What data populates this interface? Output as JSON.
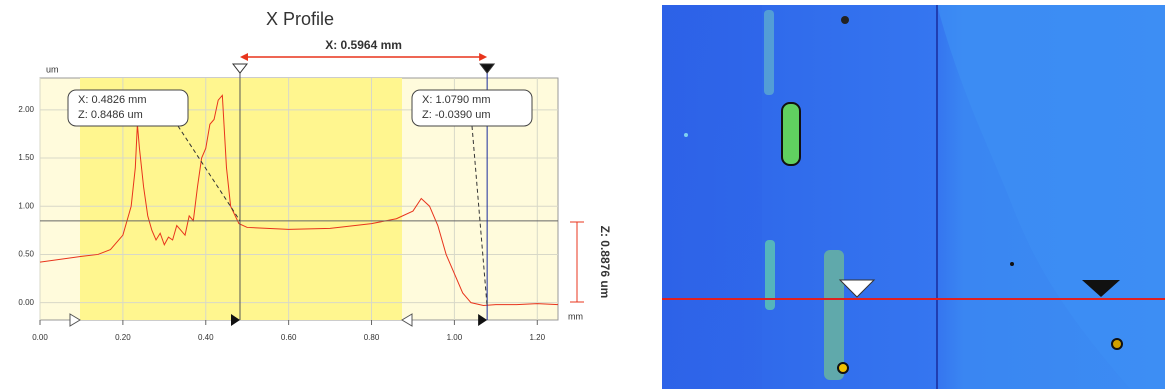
{
  "chart_data": {
    "type": "line",
    "title": "X Profile",
    "span_label": "X: 0.5964 mm",
    "height_label": "Z: 0.8876 um",
    "y_unit": "um",
    "x_unit": "mm",
    "x": [
      0.0,
      0.05,
      0.1,
      0.14,
      0.17,
      0.2,
      0.22,
      0.23,
      0.235,
      0.24,
      0.25,
      0.26,
      0.27,
      0.28,
      0.29,
      0.3,
      0.31,
      0.32,
      0.33,
      0.34,
      0.35,
      0.36,
      0.37,
      0.38,
      0.39,
      0.4,
      0.41,
      0.42,
      0.43,
      0.44,
      0.45,
      0.46,
      0.48,
      0.5,
      0.6,
      0.7,
      0.8,
      0.86,
      0.9,
      0.92,
      0.94,
      0.96,
      0.98,
      1.0,
      1.02,
      1.04,
      1.07,
      1.1,
      1.15,
      1.2,
      1.25
    ],
    "series": [
      {
        "name": "profile",
        "color": "#e8341c",
        "values": [
          0.42,
          0.45,
          0.48,
          0.5,
          0.55,
          0.7,
          1.0,
          1.4,
          1.85,
          1.6,
          1.2,
          0.9,
          0.75,
          0.65,
          0.72,
          0.6,
          0.68,
          0.65,
          0.8,
          0.75,
          0.7,
          0.9,
          0.85,
          1.2,
          1.5,
          1.6,
          1.85,
          1.9,
          2.1,
          2.15,
          1.4,
          1.0,
          0.82,
          0.78,
          0.76,
          0.77,
          0.82,
          0.87,
          0.95,
          1.08,
          1.0,
          0.8,
          0.5,
          0.3,
          0.1,
          0.0,
          -0.03,
          -0.02,
          -0.02,
          -0.01,
          -0.02
        ]
      }
    ],
    "xlim": [
      0,
      1.25
    ],
    "ylim": [
      -0.18,
      2.33
    ],
    "xticks": [
      {
        "value": 0,
        "label": "0.00"
      },
      {
        "value": 0.2,
        "label": "0.20"
      },
      {
        "value": 0.4,
        "label": "0.40"
      },
      {
        "value": 0.6,
        "label": "0.60"
      },
      {
        "value": 0.8,
        "label": "0.80"
      },
      {
        "value": 1.0,
        "label": "1.00"
      },
      {
        "value": 1.2,
        "label": "1.20"
      }
    ],
    "yticks": [
      {
        "value": 0,
        "label": "0.00"
      },
      {
        "value": 0.5,
        "label": "0.50"
      },
      {
        "value": 1.0,
        "label": "1.00"
      },
      {
        "value": 1.5,
        "label": "1.50"
      },
      {
        "value": 2.0,
        "label": "2.00"
      }
    ],
    "grid": true,
    "cursors": [
      {
        "x": 0.4826,
        "z": 0.8486,
        "labels": [
          "X: 0.4826 mm",
          "Z: 0.8486 um"
        ]
      },
      {
        "x": 1.079,
        "z": -0.039,
        "labels": [
          "X: 1.0790 mm",
          "Z: -0.0390 um"
        ]
      }
    ]
  }
}
